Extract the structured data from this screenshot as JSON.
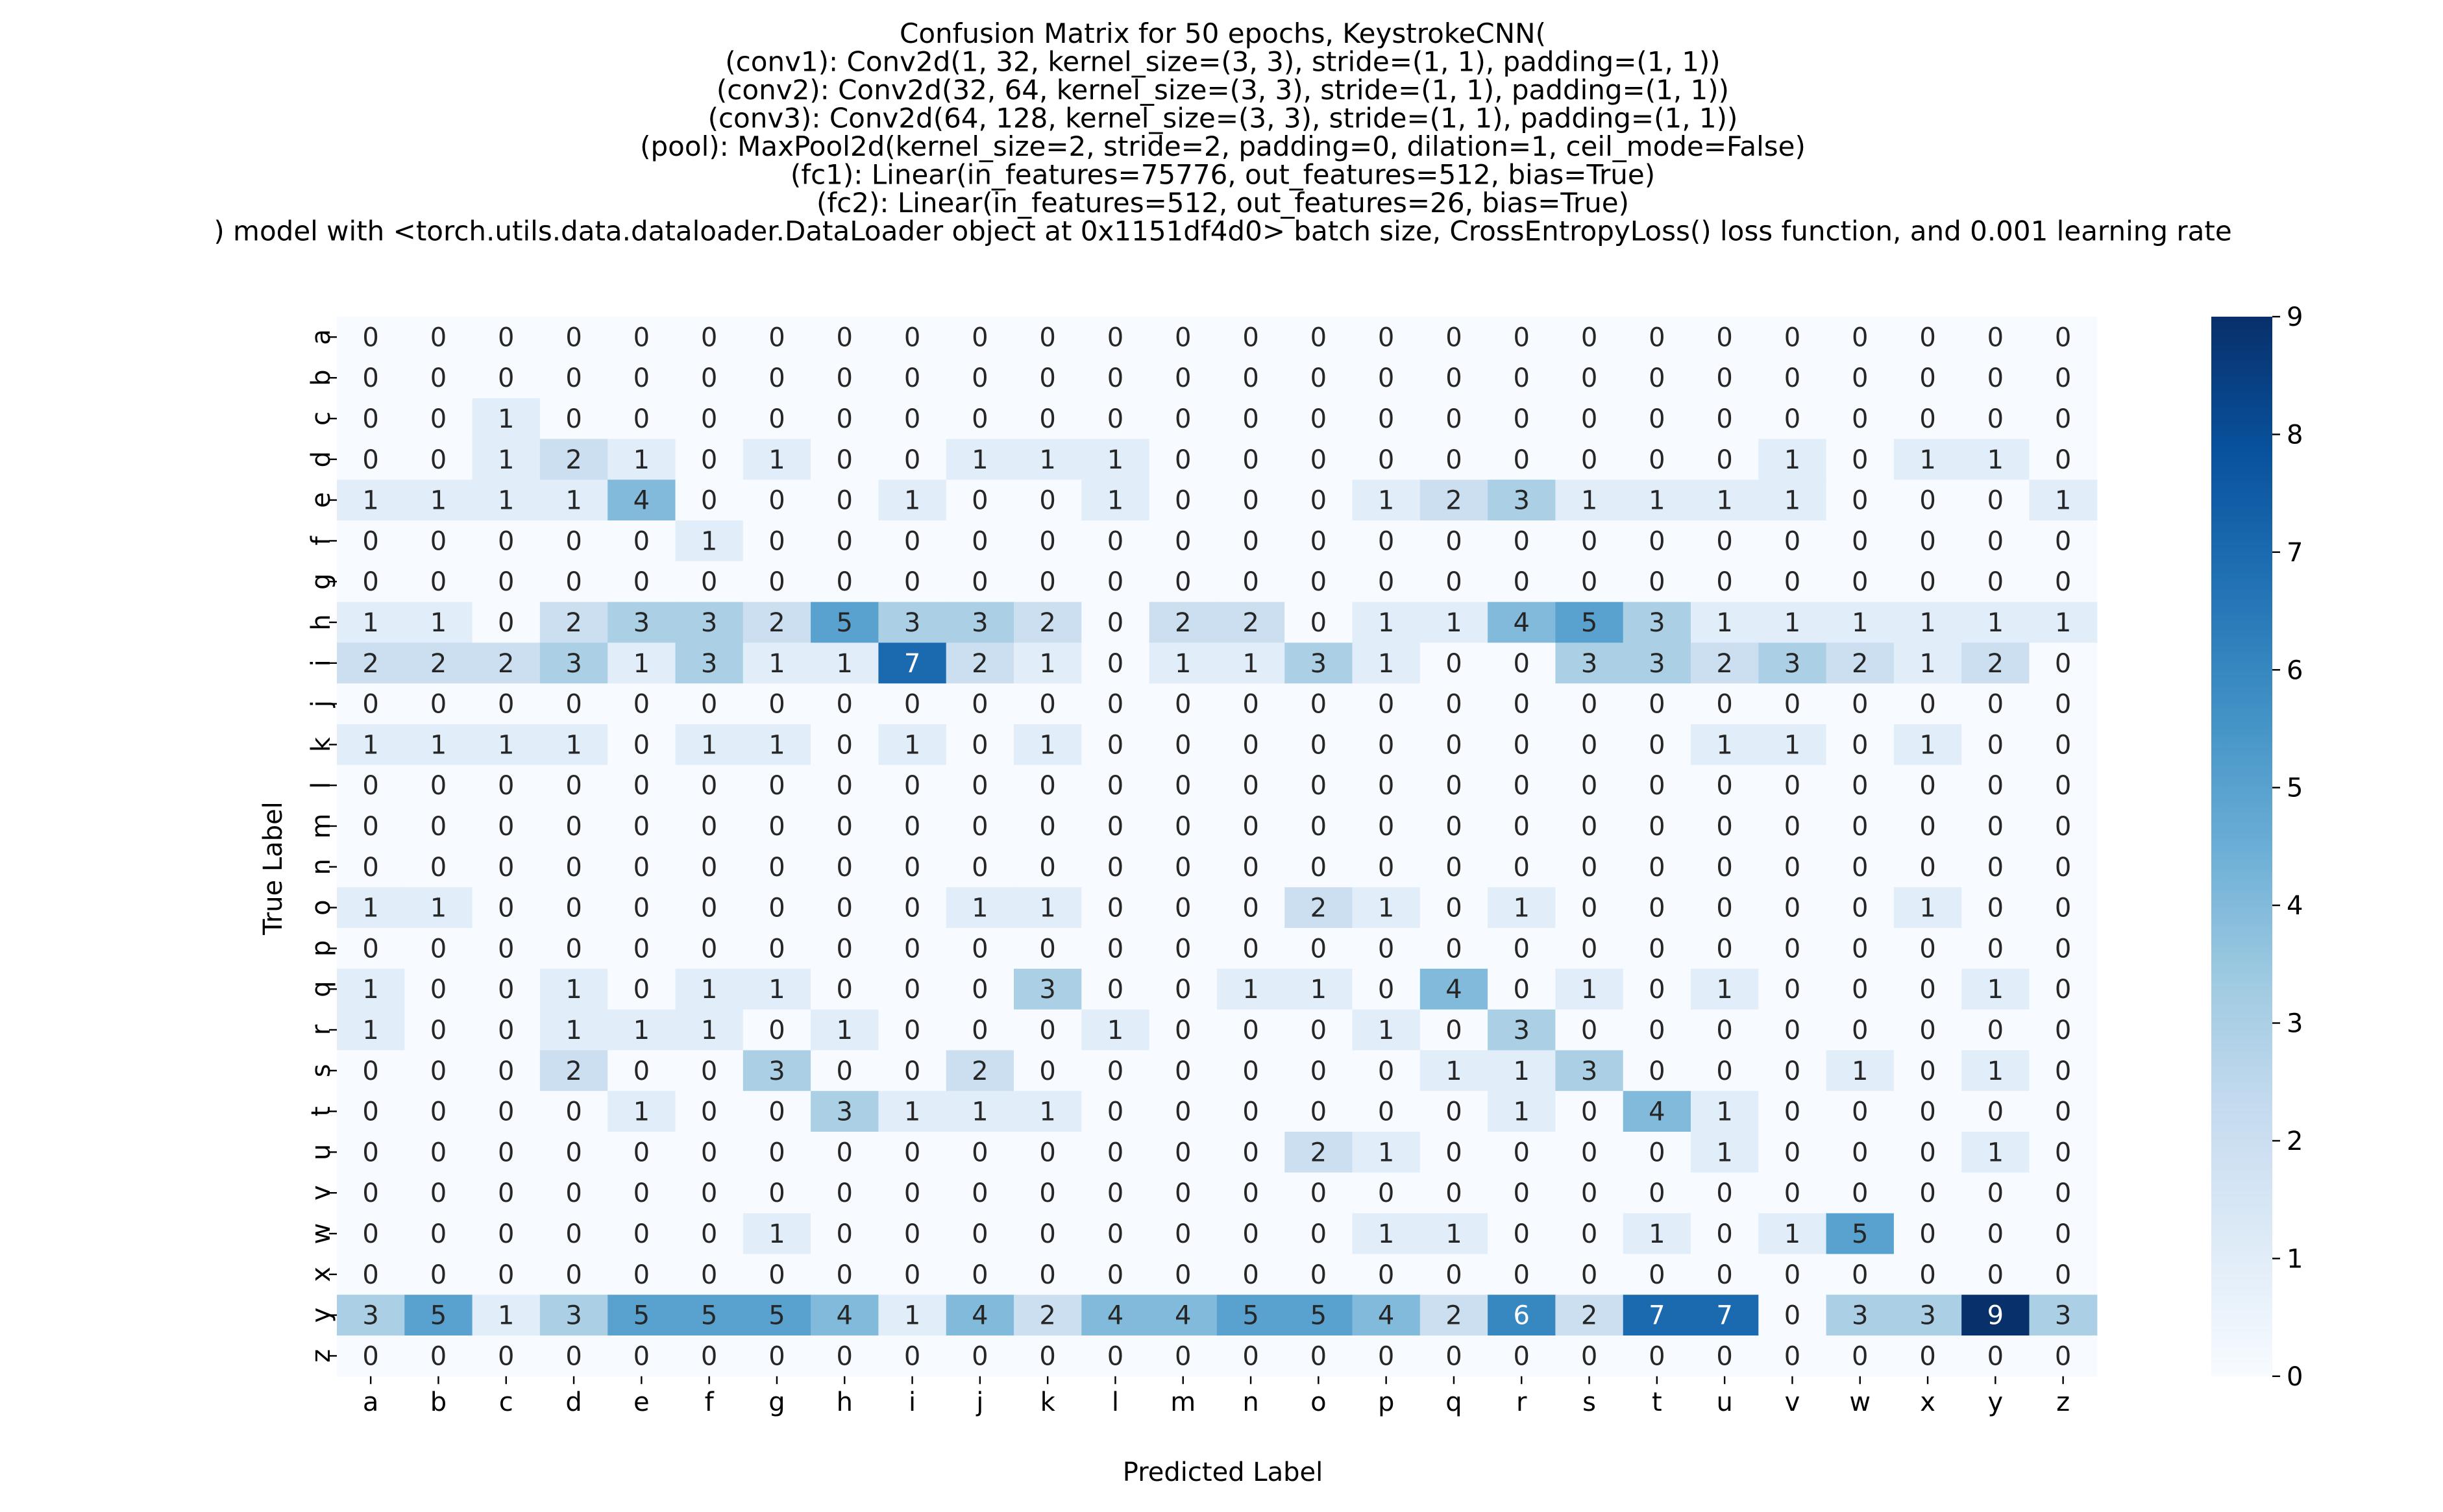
{
  "chart_data": {
    "type": "heatmap",
    "title_lines": [
      "Confusion Matrix for 50 epochs, KeystrokeCNN(",
      "(conv1): Conv2d(1, 32, kernel_size=(3, 3), stride=(1, 1), padding=(1, 1))",
      "(conv2): Conv2d(32, 64, kernel_size=(3, 3), stride=(1, 1), padding=(1, 1))",
      "(conv3): Conv2d(64, 128, kernel_size=(3, 3), stride=(1, 1), padding=(1, 1))",
      "(pool): MaxPool2d(kernel_size=2, stride=2, padding=0, dilation=1, ceil_mode=False)",
      "(fc1): Linear(in_features=75776, out_features=512, bias=True)",
      "(fc2): Linear(in_features=512, out_features=26, bias=True)",
      ") model with <torch.utils.data.dataloader.DataLoader object at 0x1151df4d0> batch size, CrossEntropyLoss() loss function, and 0.001 learning rate"
    ],
    "xlabel": "Predicted Label",
    "ylabel": "True Label",
    "x_categories": [
      "a",
      "b",
      "c",
      "d",
      "e",
      "f",
      "g",
      "h",
      "i",
      "j",
      "k",
      "l",
      "m",
      "n",
      "o",
      "p",
      "q",
      "r",
      "s",
      "t",
      "u",
      "v",
      "w",
      "x",
      "y",
      "z"
    ],
    "y_categories": [
      "a",
      "b",
      "c",
      "d",
      "e",
      "f",
      "g",
      "h",
      "i",
      "j",
      "k",
      "l",
      "m",
      "n",
      "o",
      "p",
      "q",
      "r",
      "s",
      "t",
      "u",
      "v",
      "w",
      "x",
      "y",
      "z"
    ],
    "values": [
      [
        0,
        0,
        0,
        0,
        0,
        0,
        0,
        0,
        0,
        0,
        0,
        0,
        0,
        0,
        0,
        0,
        0,
        0,
        0,
        0,
        0,
        0,
        0,
        0,
        0,
        0
      ],
      [
        0,
        0,
        0,
        0,
        0,
        0,
        0,
        0,
        0,
        0,
        0,
        0,
        0,
        0,
        0,
        0,
        0,
        0,
        0,
        0,
        0,
        0,
        0,
        0,
        0,
        0
      ],
      [
        0,
        0,
        1,
        0,
        0,
        0,
        0,
        0,
        0,
        0,
        0,
        0,
        0,
        0,
        0,
        0,
        0,
        0,
        0,
        0,
        0,
        0,
        0,
        0,
        0,
        0
      ],
      [
        0,
        0,
        1,
        2,
        1,
        0,
        1,
        0,
        0,
        1,
        1,
        1,
        0,
        0,
        0,
        0,
        0,
        0,
        0,
        0,
        0,
        1,
        0,
        1,
        1,
        0
      ],
      [
        1,
        1,
        1,
        1,
        4,
        0,
        0,
        0,
        1,
        0,
        0,
        1,
        0,
        0,
        0,
        1,
        2,
        3,
        1,
        1,
        1,
        1,
        0,
        0,
        0,
        1
      ],
      [
        0,
        0,
        0,
        0,
        0,
        1,
        0,
        0,
        0,
        0,
        0,
        0,
        0,
        0,
        0,
        0,
        0,
        0,
        0,
        0,
        0,
        0,
        0,
        0,
        0,
        0
      ],
      [
        0,
        0,
        0,
        0,
        0,
        0,
        0,
        0,
        0,
        0,
        0,
        0,
        0,
        0,
        0,
        0,
        0,
        0,
        0,
        0,
        0,
        0,
        0,
        0,
        0,
        0
      ],
      [
        1,
        1,
        0,
        2,
        3,
        3,
        2,
        5,
        3,
        3,
        2,
        0,
        2,
        2,
        0,
        1,
        1,
        4,
        5,
        3,
        1,
        1,
        1,
        1,
        1,
        1
      ],
      [
        2,
        2,
        2,
        3,
        1,
        3,
        1,
        1,
        7,
        2,
        1,
        0,
        1,
        1,
        3,
        1,
        0,
        0,
        3,
        3,
        2,
        3,
        2,
        1,
        2,
        0
      ],
      [
        0,
        0,
        0,
        0,
        0,
        0,
        0,
        0,
        0,
        0,
        0,
        0,
        0,
        0,
        0,
        0,
        0,
        0,
        0,
        0,
        0,
        0,
        0,
        0,
        0,
        0
      ],
      [
        1,
        1,
        1,
        1,
        0,
        1,
        1,
        0,
        1,
        0,
        1,
        0,
        0,
        0,
        0,
        0,
        0,
        0,
        0,
        0,
        1,
        1,
        0,
        1,
        0,
        0
      ],
      [
        0,
        0,
        0,
        0,
        0,
        0,
        0,
        0,
        0,
        0,
        0,
        0,
        0,
        0,
        0,
        0,
        0,
        0,
        0,
        0,
        0,
        0,
        0,
        0,
        0,
        0
      ],
      [
        0,
        0,
        0,
        0,
        0,
        0,
        0,
        0,
        0,
        0,
        0,
        0,
        0,
        0,
        0,
        0,
        0,
        0,
        0,
        0,
        0,
        0,
        0,
        0,
        0,
        0
      ],
      [
        0,
        0,
        0,
        0,
        0,
        0,
        0,
        0,
        0,
        0,
        0,
        0,
        0,
        0,
        0,
        0,
        0,
        0,
        0,
        0,
        0,
        0,
        0,
        0,
        0,
        0
      ],
      [
        1,
        1,
        0,
        0,
        0,
        0,
        0,
        0,
        0,
        1,
        1,
        0,
        0,
        0,
        2,
        1,
        0,
        1,
        0,
        0,
        0,
        0,
        0,
        1,
        0,
        0
      ],
      [
        0,
        0,
        0,
        0,
        0,
        0,
        0,
        0,
        0,
        0,
        0,
        0,
        0,
        0,
        0,
        0,
        0,
        0,
        0,
        0,
        0,
        0,
        0,
        0,
        0,
        0
      ],
      [
        1,
        0,
        0,
        1,
        0,
        1,
        1,
        0,
        0,
        0,
        3,
        0,
        0,
        1,
        1,
        0,
        4,
        0,
        1,
        0,
        1,
        0,
        0,
        0,
        1,
        0
      ],
      [
        1,
        0,
        0,
        1,
        1,
        1,
        0,
        1,
        0,
        0,
        0,
        1,
        0,
        0,
        0,
        1,
        0,
        3,
        0,
        0,
        0,
        0,
        0,
        0,
        0,
        0
      ],
      [
        0,
        0,
        0,
        2,
        0,
        0,
        3,
        0,
        0,
        2,
        0,
        0,
        0,
        0,
        0,
        0,
        1,
        1,
        3,
        0,
        0,
        0,
        1,
        0,
        1,
        0
      ],
      [
        0,
        0,
        0,
        0,
        1,
        0,
        0,
        3,
        1,
        1,
        1,
        0,
        0,
        0,
        0,
        0,
        0,
        1,
        0,
        4,
        1,
        0,
        0,
        0,
        0,
        0
      ],
      [
        0,
        0,
        0,
        0,
        0,
        0,
        0,
        0,
        0,
        0,
        0,
        0,
        0,
        0,
        2,
        1,
        0,
        0,
        0,
        0,
        1,
        0,
        0,
        0,
        1,
        0
      ],
      [
        0,
        0,
        0,
        0,
        0,
        0,
        0,
        0,
        0,
        0,
        0,
        0,
        0,
        0,
        0,
        0,
        0,
        0,
        0,
        0,
        0,
        0,
        0,
        0,
        0,
        0
      ],
      [
        0,
        0,
        0,
        0,
        0,
        0,
        1,
        0,
        0,
        0,
        0,
        0,
        0,
        0,
        0,
        1,
        1,
        0,
        0,
        1,
        0,
        1,
        5,
        0,
        0,
        0
      ],
      [
        0,
        0,
        0,
        0,
        0,
        0,
        0,
        0,
        0,
        0,
        0,
        0,
        0,
        0,
        0,
        0,
        0,
        0,
        0,
        0,
        0,
        0,
        0,
        0,
        0,
        0
      ],
      [
        3,
        5,
        1,
        3,
        5,
        5,
        5,
        4,
        1,
        4,
        2,
        4,
        4,
        5,
        5,
        4,
        2,
        6,
        2,
        7,
        7,
        0,
        3,
        3,
        9,
        3
      ],
      [
        0,
        0,
        0,
        0,
        0,
        0,
        0,
        0,
        0,
        0,
        0,
        0,
        0,
        0,
        0,
        0,
        0,
        0,
        0,
        0,
        0,
        0,
        0,
        0,
        0,
        0
      ]
    ],
    "vmin": 0,
    "vmax": 9,
    "colorbar_ticks": [
      "0",
      "1",
      "2",
      "3",
      "4",
      "5",
      "6",
      "7",
      "8",
      "9"
    ],
    "colormap": [
      "#f7fbff",
      "#deebf7",
      "#c6dbef",
      "#9ecae1",
      "#6baed6",
      "#4292c6",
      "#2171b5",
      "#08519c",
      "#08306b"
    ],
    "annotations": true,
    "grid": false
  }
}
